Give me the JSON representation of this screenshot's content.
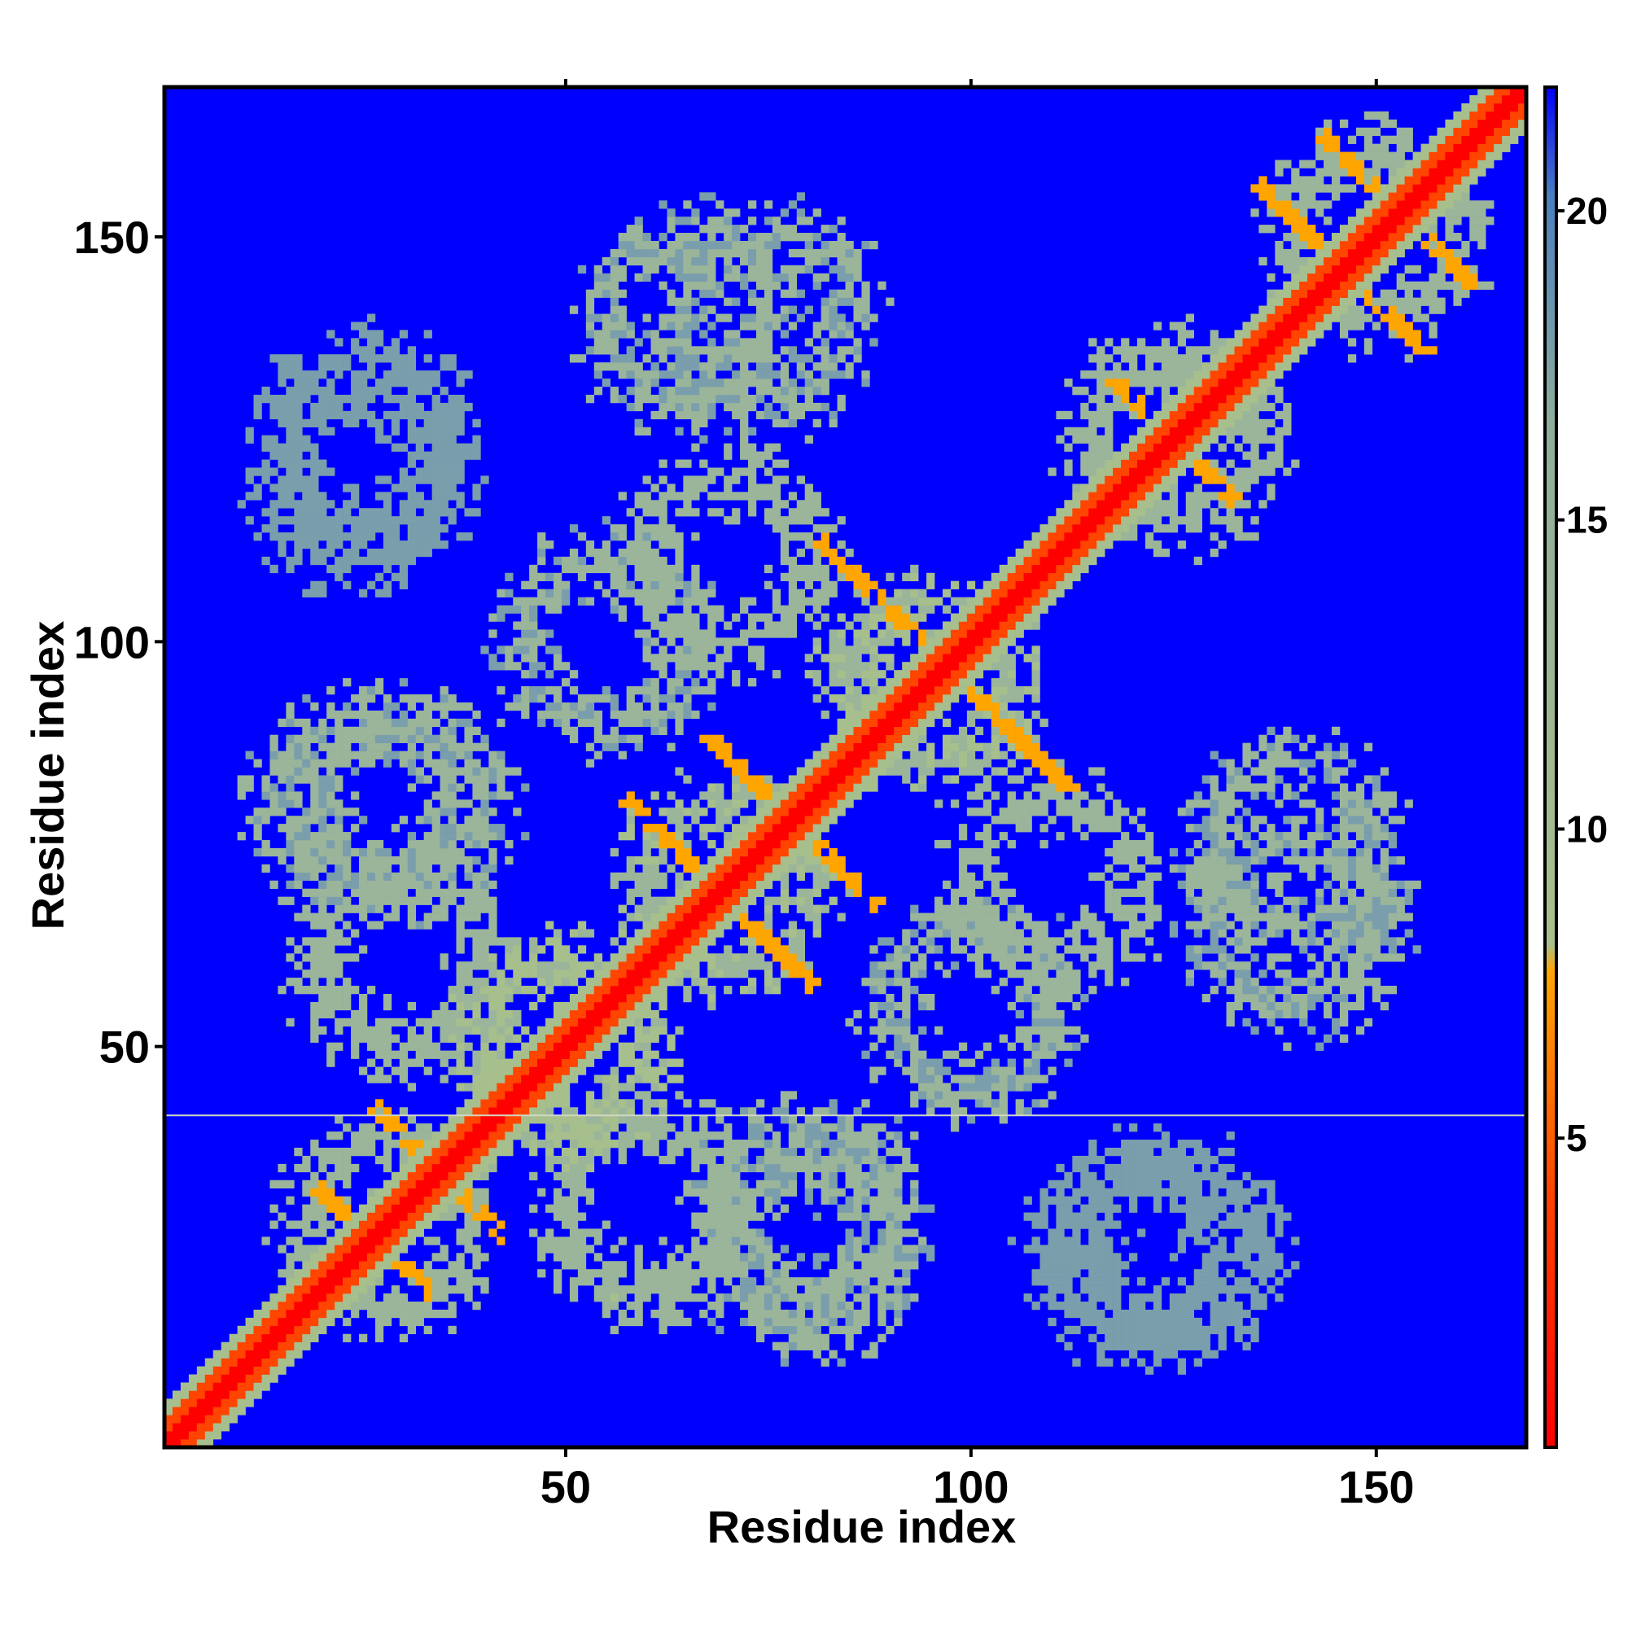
{
  "chart_data": {
    "type": "heatmap",
    "title": "",
    "xlabel": "Residue index",
    "ylabel": "Residue index",
    "xlim": [
      1,
      168
    ],
    "ylim": [
      1,
      168
    ],
    "x_ticks": [
      50,
      100,
      150
    ],
    "y_ticks": [
      50,
      100,
      150
    ],
    "colorbar": {
      "range": [
        0,
        22
      ],
      "ticks": [
        5,
        10,
        15,
        20
      ],
      "colors": {
        "low": "#ff0000",
        "mid_low": "#ffa500",
        "mid": "#a8c08c",
        "high": "#4a7fbf",
        "max": "#0000ff"
      }
    },
    "matrix_description": {
      "diagonal_value": 1,
      "background_value": 22,
      "separator_row": 41
    },
    "contact_clusters": [
      {
        "center": [
          28,
          28
        ],
        "value": 12
      },
      {
        "center": [
          50,
          50
        ],
        "value": 10
      },
      {
        "center": [
          70,
          70
        ],
        "value": 11
      },
      {
        "center": [
          95,
          95
        ],
        "value": 11
      },
      {
        "center": [
          125,
          125
        ],
        "value": 12
      },
      {
        "center": [
          150,
          150
        ],
        "value": 12
      },
      {
        "center": [
          30,
          80
        ],
        "value": 13
      },
      {
        "center": [
          70,
          110
        ],
        "value": 12
      },
      {
        "center": [
          65,
          140
        ],
        "value": 13
      },
      {
        "center": [
          25,
          125
        ],
        "value": 15
      },
      {
        "center": [
          60,
          30
        ],
        "value": 12
      },
      {
        "center": [
          80,
          25
        ],
        "value": 13
      },
      {
        "center": [
          110,
          70
        ],
        "value": 12
      },
      {
        "center": [
          140,
          75
        ],
        "value": 13
      },
      {
        "center": [
          120,
          25
        ],
        "value": 15
      },
      {
        "center": [
          100,
          55
        ],
        "value": 13
      }
    ],
    "strong_contacts": [
      {
        "from": [
          20,
          32
        ],
        "to": [
          33,
          20
        ],
        "value": 6
      },
      {
        "from": [
          27,
          42
        ],
        "to": [
          42,
          27
        ],
        "value": 6
      },
      {
        "from": [
          58,
          80
        ],
        "to": [
          80,
          58
        ],
        "value": 6
      },
      {
        "from": [
          68,
          88
        ],
        "to": [
          88,
          68
        ],
        "value": 6
      },
      {
        "from": [
          82,
          112
        ],
        "to": [
          112,
          82
        ],
        "value": 6
      },
      {
        "from": [
          118,
          132
        ],
        "to": [
          132,
          118
        ],
        "value": 6
      },
      {
        "from": [
          136,
          156
        ],
        "to": [
          156,
          136
        ],
        "value": 6
      },
      {
        "from": [
          144,
          162
        ],
        "to": [
          162,
          144
        ],
        "value": 6
      }
    ]
  }
}
